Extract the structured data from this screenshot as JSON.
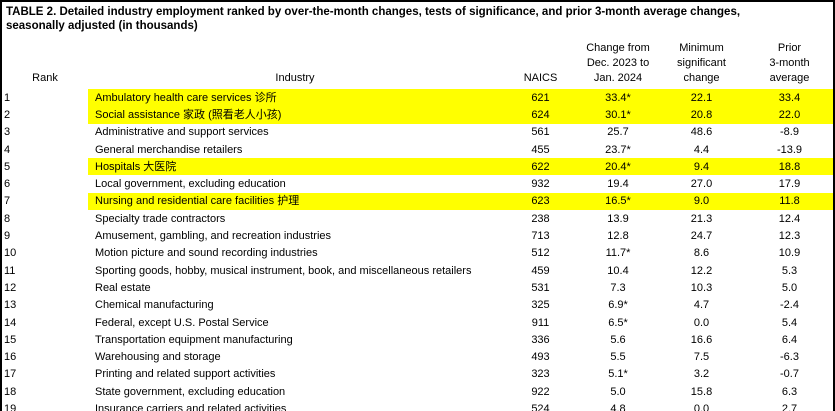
{
  "title": {
    "line1": "TABLE 2. Detailed industry employment ranked by over-the-month changes, tests of significance, and prior 3-month average changes,",
    "line2": "seasonally adjusted (in thousands)"
  },
  "columns": {
    "rank": "Rank",
    "industry": "Industry",
    "naics": "NAICS",
    "change": "Change from\nDec. 2023 to\nJan. 2024",
    "min": "Minimum\nsignificant\nchange",
    "prior": "Prior\n3-month\naverage"
  },
  "colors": {
    "highlight": "#ffff00",
    "border": "#000000",
    "text": "#000000",
    "background": "#ffffff"
  },
  "rows": [
    {
      "rank": "1",
      "industry": "Ambulatory health care services 诊所",
      "naics": "621",
      "change": "33.4*",
      "min": "22.1",
      "prior": "33.4",
      "highlight": true
    },
    {
      "rank": "2",
      "industry": "Social assistance 家政 (照看老人小孩)",
      "naics": "624",
      "change": "30.1*",
      "min": "20.8",
      "prior": "22.0",
      "highlight": true
    },
    {
      "rank": "3",
      "industry": "Administrative and support services",
      "naics": "561",
      "change": "25.7",
      "min": "48.6",
      "prior": "-8.9",
      "highlight": false
    },
    {
      "rank": "4",
      "industry": "General merchandise retailers",
      "naics": "455",
      "change": "23.7*",
      "min": "4.4",
      "prior": "-13.9",
      "highlight": false
    },
    {
      "rank": "5",
      "industry": "Hospitals 大医院",
      "naics": "622",
      "change": "20.4*",
      "min": "9.4",
      "prior": "18.8",
      "highlight": true
    },
    {
      "rank": "6",
      "industry": "Local government, excluding education",
      "naics": "932",
      "change": "19.4",
      "min": "27.0",
      "prior": "17.9",
      "highlight": false
    },
    {
      "rank": "7",
      "industry": "Nursing and residential care facilities 护理",
      "naics": "623",
      "change": "16.5*",
      "min": "9.0",
      "prior": "11.8",
      "highlight": true
    },
    {
      "rank": "8",
      "industry": "Specialty trade contractors",
      "naics": "238",
      "change": "13.9",
      "min": "21.3",
      "prior": "12.4",
      "highlight": false
    },
    {
      "rank": "9",
      "industry": "Amusement, gambling, and recreation industries",
      "naics": "713",
      "change": "12.8",
      "min": "24.7",
      "prior": "12.3",
      "highlight": false
    },
    {
      "rank": "10",
      "industry": "Motion picture and sound recording industries",
      "naics": "512",
      "change": "11.7*",
      "min": "8.6",
      "prior": "10.9",
      "highlight": false
    },
    {
      "rank": "11",
      "industry": "Sporting goods, hobby, musical instrument, book, and miscellaneous retailers",
      "naics": "459",
      "change": "10.4",
      "min": "12.2",
      "prior": "5.3",
      "highlight": false
    },
    {
      "rank": "12",
      "industry": "Real estate",
      "naics": "531",
      "change": "7.3",
      "min": "10.3",
      "prior": "5.0",
      "highlight": false
    },
    {
      "rank": "13",
      "industry": "Chemical manufacturing",
      "naics": "325",
      "change": "6.9*",
      "min": "4.7",
      "prior": "-2.4",
      "highlight": false
    },
    {
      "rank": "14",
      "industry": "Federal, except U.S. Postal Service",
      "naics": "911",
      "change": "6.5*",
      "min": "0.0",
      "prior": "5.4",
      "highlight": false
    },
    {
      "rank": "15",
      "industry": "Transportation equipment manufacturing",
      "naics": "336",
      "change": "5.6",
      "min": "16.6",
      "prior": "6.4",
      "highlight": false
    },
    {
      "rank": "16",
      "industry": "Warehousing and storage",
      "naics": "493",
      "change": "5.5",
      "min": "7.5",
      "prior": "-6.3",
      "highlight": false
    },
    {
      "rank": "17",
      "industry": "Printing and related support activities",
      "naics": "323",
      "change": "5.1*",
      "min": "3.2",
      "prior": "-0.7",
      "highlight": false
    },
    {
      "rank": "18",
      "industry": "State government, excluding education",
      "naics": "922",
      "change": "5.0",
      "min": "15.8",
      "prior": "6.3",
      "highlight": false
    },
    {
      "rank": "19",
      "industry": "Insurance carriers and related activities",
      "naics": "524",
      "change": "4.8",
      "min": "0.0",
      "prior": "2.7",
      "highlight": false
    }
  ]
}
